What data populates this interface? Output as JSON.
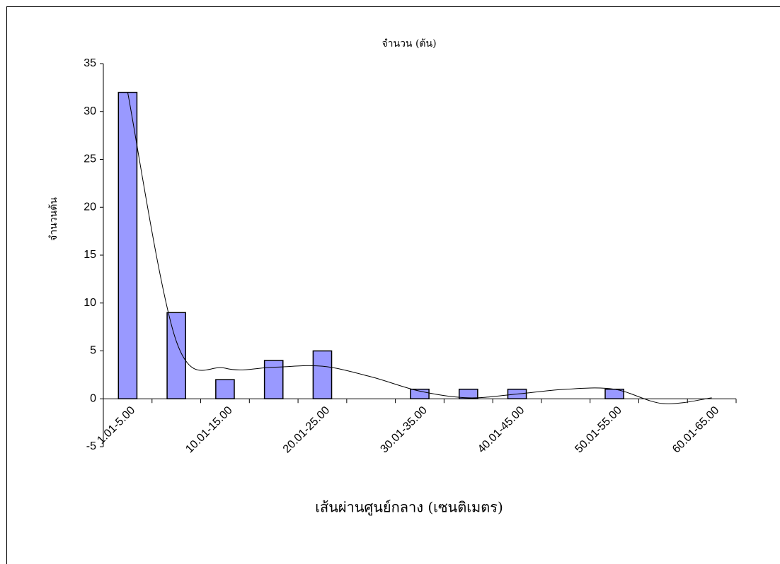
{
  "chart_data": {
    "type": "bar",
    "title": "จำนวน (ต้น)",
    "x_label": "เส้นผ่านศูนย์กลาง (เซนติเมตร)",
    "y_label": "จำนวนต้น",
    "categories": [
      "1.01-5.00",
      null,
      "10.01-15.00",
      null,
      "20.01-25.00",
      null,
      "30.01-35.00",
      null,
      "40.01-45.00",
      null,
      "50.01-55.00",
      null,
      "60.01-65.00"
    ],
    "values": [
      32,
      9,
      2,
      4,
      5,
      0,
      1,
      1,
      1,
      0,
      1,
      0,
      0
    ],
    "color": "#9999ff",
    "trendline": {
      "color": "#000000",
      "values": [
        32,
        6,
        3.2,
        3.3,
        3.4,
        2.3,
        0.8,
        0.1,
        0.5,
        1,
        1,
        -0.5,
        0.1
      ]
    },
    "ylim": [
      -5,
      35
    ],
    "yticks": [
      -5,
      0,
      5,
      10,
      15,
      20,
      25,
      30,
      35
    ],
    "grid": false
  }
}
